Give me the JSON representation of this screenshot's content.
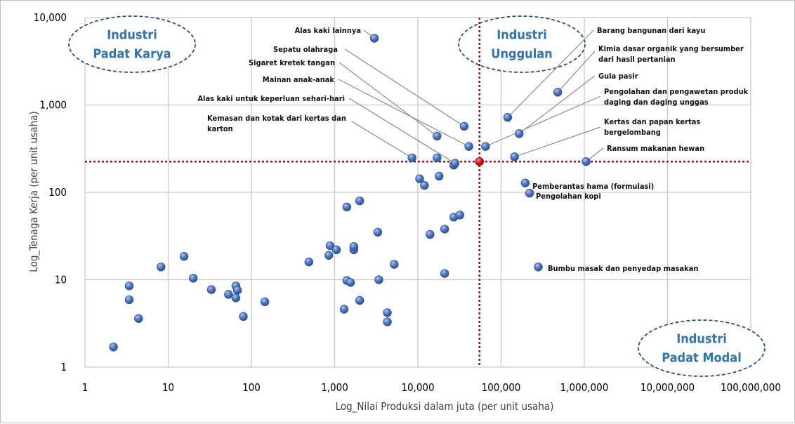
{
  "chart_data": {
    "type": "scatter",
    "xlabel": "Log_Nilai Produksi dalam juta (per unit usaha)",
    "ylabel": "Log_Tenaga Kerja (per unit usaha)",
    "x_scale": "log10",
    "y_scale": "log10",
    "xlim": [
      1,
      100000000
    ],
    "ylim": [
      1,
      10000
    ],
    "x_ticks": [
      {
        "value": 1,
        "label": "1"
      },
      {
        "value": 10,
        "label": "10"
      },
      {
        "value": 100,
        "label": "100"
      },
      {
        "value": 1000,
        "label": "1,000"
      },
      {
        "value": 10000,
        "label": "10,000"
      },
      {
        "value": 100000,
        "label": "100,000"
      },
      {
        "value": 1000000,
        "label": "1,000,000"
      },
      {
        "value": 10000000,
        "label": "10,000,000"
      },
      {
        "value": 100000000,
        "label": "100,000,000"
      }
    ],
    "y_ticks": [
      {
        "value": 1,
        "label": "1"
      },
      {
        "value": 10,
        "label": "10"
      },
      {
        "value": 100,
        "label": "100"
      },
      {
        "value": 1000,
        "label": "1,000"
      },
      {
        "value": 10000,
        "label": "10,000"
      }
    ],
    "grid": true,
    "point_color": "#4472c4",
    "reference_color": "#e00000",
    "reference_point": {
      "x": 55000,
      "y": 225
    },
    "reference_lines": {
      "x": 55000,
      "y": 225
    },
    "quadrant_labels": [
      {
        "lines": [
          "Industri",
          "Padat Karya"
        ],
        "position": "top-left"
      },
      {
        "lines": [
          "Industri",
          "Unggulan"
        ],
        "position": "top-right"
      },
      {
        "lines": [
          "Industri",
          "Padat Modal"
        ],
        "position": "bottom-right"
      }
    ],
    "annotations": [
      {
        "lines": [
          "Alas kaki lainnya"
        ],
        "target": [
          3000,
          5800
        ]
      },
      {
        "lines": [
          "Sepatu olahraga"
        ],
        "target": [
          36000,
          570
        ]
      },
      {
        "lines": [
          "Sigaret kretek tangan"
        ],
        "target": [
          17000,
          440
        ]
      },
      {
        "lines": [
          "Mainan anak-anak"
        ],
        "target": [
          41000,
          335
        ]
      },
      {
        "lines": [
          "Alas kaki untuk keperluan sehari-hari"
        ],
        "target": [
          28000,
          215
        ]
      },
      {
        "lines": [
          "Kemasan dan kotak dari kertas dan",
          "karton"
        ],
        "target": [
          8500,
          248
        ]
      },
      {
        "lines": [
          "Barang bangunan dari kayu"
        ],
        "target": [
          120000,
          720
        ]
      },
      {
        "lines": [
          "Kimia dasar organik yang bersumber",
          "dari hasil pertanian"
        ],
        "target": [
          480000,
          1400
        ]
      },
      {
        "lines": [
          "Gula pasir"
        ],
        "target": [
          165000,
          470
        ]
      },
      {
        "lines": [
          "Pengolahan dan pengawetan produk",
          "daging dan daging unggas"
        ],
        "target": [
          65000,
          335
        ]
      },
      {
        "lines": [
          "Kertas dan papan kertas",
          "bergelombang"
        ],
        "target": [
          145000,
          255
        ]
      },
      {
        "lines": [
          "Ransum makanan hewan"
        ],
        "target": [
          1050000,
          225
        ]
      },
      {
        "lines": [
          "Pemberantas hama (formulasi)"
        ],
        "target": [
          195000,
          128
        ]
      },
      {
        "lines": [
          "Pengolahan kopi"
        ],
        "target": [
          220000,
          98
        ]
      },
      {
        "lines": [
          "Bumbu masak dan penyedap masakan"
        ],
        "target": [
          280000,
          14
        ]
      }
    ],
    "points": [
      {
        "x": 2.2,
        "y": 1.7
      },
      {
        "x": 3.4,
        "y": 8.5
      },
      {
        "x": 3.4,
        "y": 5.9
      },
      {
        "x": 4.4,
        "y": 3.6
      },
      {
        "x": 8.2,
        "y": 14
      },
      {
        "x": 15.5,
        "y": 18.5
      },
      {
        "x": 20,
        "y": 10.4
      },
      {
        "x": 33,
        "y": 7.7
      },
      {
        "x": 53,
        "y": 6.8
      },
      {
        "x": 65,
        "y": 8.5
      },
      {
        "x": 65,
        "y": 6.2
      },
      {
        "x": 68,
        "y": 7.6
      },
      {
        "x": 80,
        "y": 3.8
      },
      {
        "x": 145,
        "y": 5.6
      },
      {
        "x": 490,
        "y": 16
      },
      {
        "x": 850,
        "y": 19
      },
      {
        "x": 880,
        "y": 24.5
      },
      {
        "x": 1050,
        "y": 22
      },
      {
        "x": 1300,
        "y": 4.6
      },
      {
        "x": 1400,
        "y": 68
      },
      {
        "x": 1400,
        "y": 9.8
      },
      {
        "x": 1550,
        "y": 9.3
      },
      {
        "x": 1700,
        "y": 22
      },
      {
        "x": 1700,
        "y": 24
      },
      {
        "x": 2000,
        "y": 80
      },
      {
        "x": 2000,
        "y": 5.8
      },
      {
        "x": 3000,
        "y": 5800
      },
      {
        "x": 3300,
        "y": 35
      },
      {
        "x": 3400,
        "y": 10
      },
      {
        "x": 4300,
        "y": 4.2
      },
      {
        "x": 4300,
        "y": 3.3
      },
      {
        "x": 5200,
        "y": 15
      },
      {
        "x": 8500,
        "y": 248
      },
      {
        "x": 10500,
        "y": 143
      },
      {
        "x": 12000,
        "y": 120
      },
      {
        "x": 14000,
        "y": 33
      },
      {
        "x": 17000,
        "y": 440
      },
      {
        "x": 17000,
        "y": 248
      },
      {
        "x": 18000,
        "y": 153
      },
      {
        "x": 21000,
        "y": 38
      },
      {
        "x": 21000,
        "y": 11.8
      },
      {
        "x": 27000,
        "y": 52
      },
      {
        "x": 27000,
        "y": 205
      },
      {
        "x": 28000,
        "y": 215
      },
      {
        "x": 32000,
        "y": 55
      },
      {
        "x": 36000,
        "y": 570
      },
      {
        "x": 41000,
        "y": 335
      },
      {
        "x": 65000,
        "y": 335
      },
      {
        "x": 120000,
        "y": 720
      },
      {
        "x": 145000,
        "y": 255
      },
      {
        "x": 165000,
        "y": 470
      },
      {
        "x": 195000,
        "y": 128
      },
      {
        "x": 220000,
        "y": 98
      },
      {
        "x": 280000,
        "y": 14
      },
      {
        "x": 480000,
        "y": 1400
      },
      {
        "x": 1050000,
        "y": 225
      }
    ]
  }
}
